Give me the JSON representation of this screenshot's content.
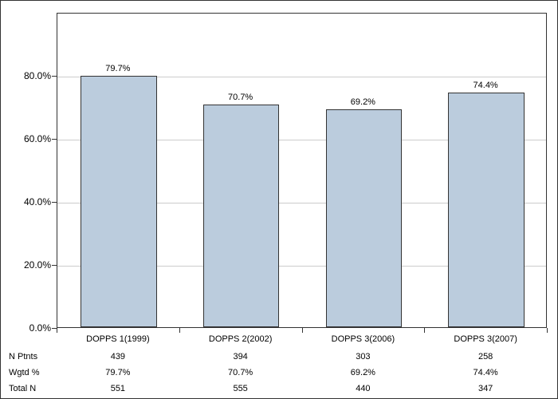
{
  "chart": {
    "type": "bar",
    "background_color": "#ffffff",
    "border_color": "#333333",
    "grid_color": "#cccccc",
    "bar_fill_color": "#bcd",
    "bar_border_color": "#333333",
    "label_fontsize": 12,
    "datalabel_fontsize": 11,
    "ylim_max": 100,
    "yticks": [
      {
        "value": 0.0,
        "label": "0.0%"
      },
      {
        "value": 20.0,
        "label": "20.0%"
      },
      {
        "value": 40.0,
        "label": "40.0%"
      },
      {
        "value": 60.0,
        "label": "60.0%"
      },
      {
        "value": 80.0,
        "label": "80.0%"
      }
    ],
    "categories": [
      {
        "label": "DOPPS 1(1999)",
        "value": 79.7,
        "value_label": "79.7%",
        "n_ptnts": "439",
        "wgtd_pct": "79.7%",
        "total_n": "551"
      },
      {
        "label": "DOPPS 2(2002)",
        "value": 70.7,
        "value_label": "70.7%",
        "n_ptnts": "394",
        "wgtd_pct": "70.7%",
        "total_n": "555"
      },
      {
        "label": "DOPPS 3(2006)",
        "value": 69.2,
        "value_label": "69.2%",
        "n_ptnts": "303",
        "wgtd_pct": "69.2%",
        "total_n": "440"
      },
      {
        "label": "DOPPS 3(2007)",
        "value": 74.4,
        "value_label": "74.4%",
        "n_ptnts": "258",
        "wgtd_pct": "74.4%",
        "total_n": "347"
      }
    ],
    "row_labels": {
      "n_ptnts": "N Ptnts",
      "wgtd_pct": "Wgtd %",
      "total_n": "Total N"
    }
  }
}
